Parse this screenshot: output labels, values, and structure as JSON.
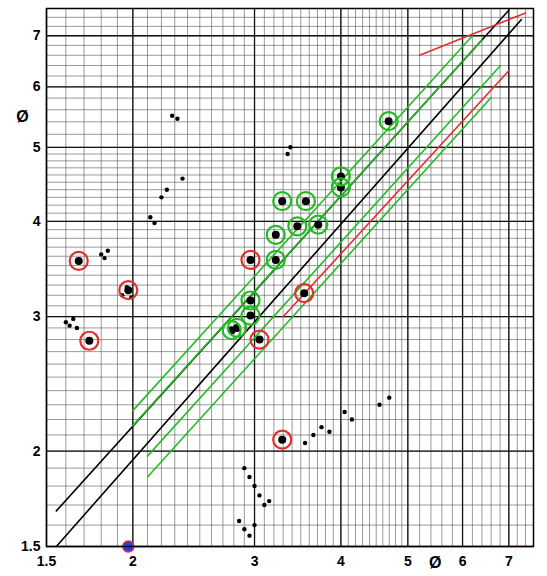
{
  "chart_data": {
    "type": "scatter",
    "log": true,
    "grid": true,
    "tick_labels": true,
    "xlabel": "Ø",
    "ylabel": "Ø",
    "xlim": [
      1.5,
      7.6
    ],
    "ylim": [
      1.5,
      7.6
    ],
    "xticks": [
      1.5,
      2,
      3,
      4,
      5,
      6,
      7
    ],
    "yticks": [
      1.5,
      2,
      3,
      4,
      5,
      6,
      7
    ],
    "xminor": [
      1.5,
      1.6,
      1.7,
      1.8,
      1.9,
      2,
      2.1,
      2.2,
      2.3,
      2.4,
      2.5,
      2.6,
      2.7,
      2.8,
      2.9,
      3,
      3.1,
      3.2,
      3.3,
      3.4,
      3.5,
      3.6,
      3.7,
      3.8,
      3.9,
      4,
      4.1,
      4.2,
      4.3,
      4.4,
      4.5,
      4.6,
      4.7,
      4.8,
      4.9,
      5,
      5.2,
      5.4,
      5.6,
      5.8,
      6,
      6.2,
      6.4,
      6.6,
      6.8,
      7,
      7.2,
      7.4,
      7.6
    ],
    "yminor": [
      1.5,
      1.6,
      1.7,
      1.8,
      1.9,
      2,
      2.1,
      2.2,
      2.3,
      2.4,
      2.5,
      2.6,
      2.7,
      2.8,
      2.9,
      3,
      3.1,
      3.2,
      3.3,
      3.4,
      3.5,
      3.6,
      3.7,
      3.8,
      3.9,
      4,
      4.1,
      4.2,
      4.3,
      4.4,
      4.5,
      4.6,
      4.7,
      4.8,
      4.9,
      5,
      5.2,
      5.4,
      5.6,
      5.8,
      6,
      6.2,
      6.4,
      6.6,
      6.8,
      7,
      7.2,
      7.4,
      7.6
    ],
    "series": [
      {
        "type": "line",
        "color": "#000000",
        "line_style": "solid",
        "x": [
          1.55,
          7.3
        ],
        "y": [
          1.5,
          7.35
        ]
      },
      {
        "type": "line",
        "color": "#000000",
        "line_style": "solid",
        "x": [
          1.55,
          7.0
        ],
        "y": [
          1.67,
          7.56
        ]
      },
      {
        "type": "line",
        "color": "#22bb22",
        "line_style": "solid",
        "x": [
          2.1,
          6.6
        ],
        "y": [
          1.85,
          5.81
        ]
      },
      {
        "type": "line",
        "color": "#22bb22",
        "line_style": "solid",
        "x": [
          2.1,
          6.8
        ],
        "y": [
          1.97,
          6.39
        ]
      },
      {
        "type": "line",
        "color": "#22bb22",
        "line_style": "solid",
        "x": [
          2.0,
          6.4
        ],
        "y": [
          2.16,
          6.91
        ]
      },
      {
        "type": "line",
        "color": "#22bb22",
        "line_style": "solid",
        "x": [
          2.0,
          6.2
        ],
        "y": [
          2.26,
          7.0
        ]
      },
      {
        "type": "line",
        "color": "#e03030",
        "line_style": "solid",
        "x": [
          3.3,
          7.0
        ],
        "y": [
          3.0,
          6.3
        ]
      },
      {
        "type": "line",
        "color": "#e03030",
        "line_style": "solid",
        "x": [
          5.2,
          7.4
        ],
        "y": [
          6.6,
          7.5
        ]
      },
      {
        "type": "scatter",
        "color": "#000000",
        "marker": "dot",
        "x": [
          1.6,
          1.62,
          1.64,
          1.66,
          1.8,
          1.82,
          1.84,
          1.93,
          1.96,
          1.99,
          2.12,
          2.15,
          2.2,
          2.24,
          2.28,
          2.32,
          2.36,
          3.35,
          3.38,
          3.55,
          3.65,
          3.75,
          3.85,
          4.05,
          4.15,
          4.55,
          4.7,
          2.9,
          2.95,
          3.0,
          3.05,
          3.1,
          3.15,
          2.85,
          2.9,
          2.95,
          3.0
        ],
        "y": [
          2.95,
          2.92,
          2.98,
          2.9,
          3.62,
          3.58,
          3.66,
          3.2,
          3.28,
          3.18,
          4.05,
          3.98,
          4.3,
          4.4,
          5.5,
          5.45,
          4.55,
          4.9,
          5.0,
          2.05,
          2.1,
          2.15,
          2.12,
          2.25,
          2.2,
          2.3,
          2.35,
          1.9,
          1.85,
          1.8,
          1.75,
          1.7,
          1.72,
          1.62,
          1.58,
          1.55,
          1.6
        ]
      },
      {
        "type": "scatter",
        "color": "#22bb22",
        "marker": "circled",
        "x": [
          2.78,
          2.83,
          2.96,
          2.96,
          3.22,
          3.22,
          3.29,
          3.46,
          3.56,
          3.71,
          4.0,
          4.0,
          4.69
        ],
        "y": [
          2.88,
          2.9,
          3.15,
          3.01,
          3.56,
          3.84,
          4.25,
          3.94,
          4.25,
          3.96,
          4.43,
          4.58,
          5.41
        ]
      },
      {
        "type": "scatter",
        "color": "#e03030",
        "marker": "circled",
        "x": [
          3.05,
          3.54,
          1.97,
          1.73,
          1.67,
          3.29,
          2.96
        ],
        "y": [
          2.8,
          3.22,
          3.25,
          2.79,
          3.55,
          2.07,
          3.56
        ]
      },
      {
        "type": "scatter",
        "color": "#2040e0",
        "marker": "filled",
        "x": [
          1.97
        ],
        "y": [
          1.5
        ]
      }
    ]
  }
}
